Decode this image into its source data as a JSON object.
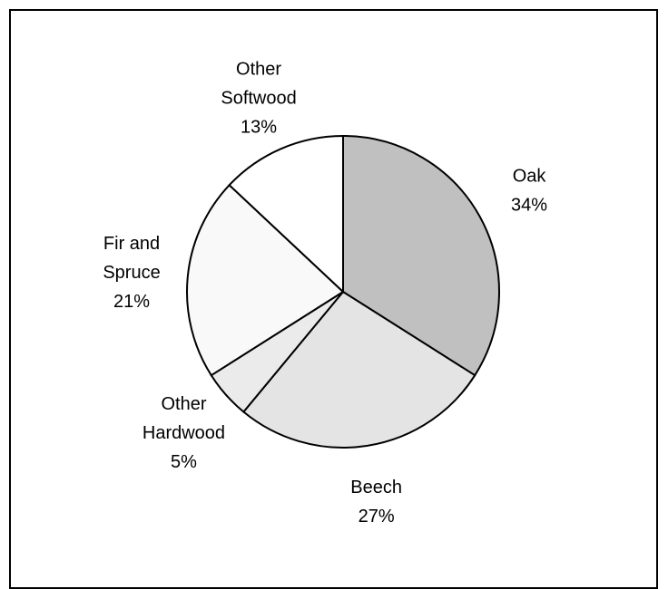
{
  "chart_data": {
    "type": "pie",
    "slices": [
      {
        "name": "Oak",
        "value": 34,
        "label_lines": [
          "Oak",
          "34%"
        ],
        "color": "#c0c0c0"
      },
      {
        "name": "Beech",
        "value": 27,
        "label_lines": [
          "Beech",
          "27%"
        ],
        "color": "#e4e4e4"
      },
      {
        "name": "Other Hardwood",
        "value": 5,
        "label_lines": [
          "Other",
          "Hardwood",
          "5%"
        ],
        "color": "#ebebeb"
      },
      {
        "name": "Fir and Spruce",
        "value": 21,
        "label_lines": [
          "Fir and",
          "Spruce",
          "21%"
        ],
        "color": "#f9f9f9"
      },
      {
        "name": "Other Softwood",
        "value": 13,
        "label_lines": [
          "Other",
          "Softwood",
          "13%"
        ],
        "color": "#ffffff"
      }
    ]
  }
}
